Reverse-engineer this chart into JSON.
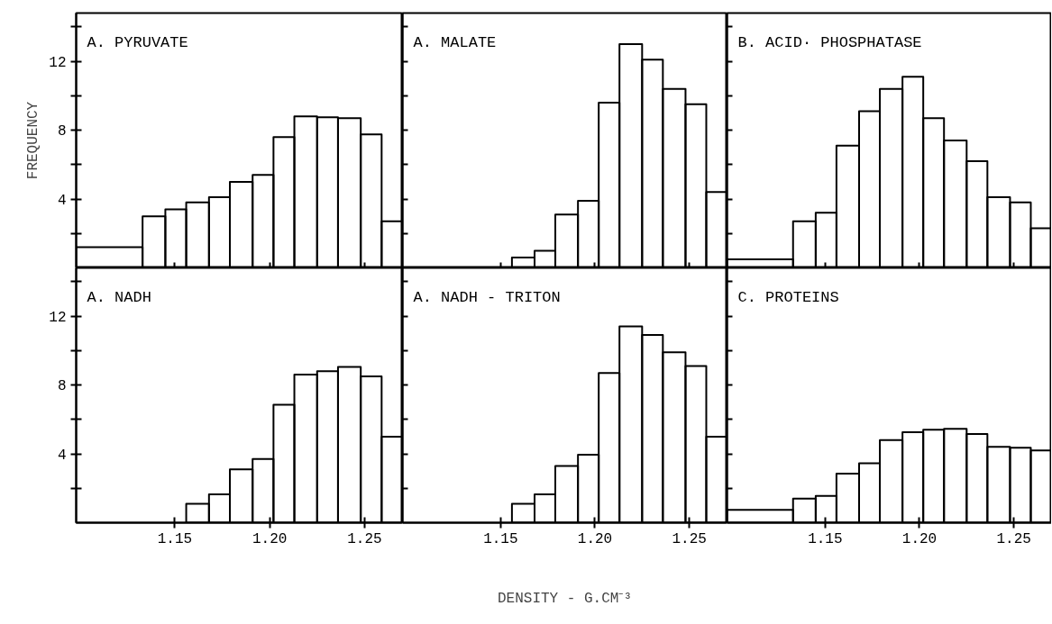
{
  "chart_data": [
    {
      "type": "histogram",
      "title": "A. PYRUVATE",
      "ylabel": "FREQUENCY",
      "color": "#000000",
      "tick_labels": "y",
      "bins": [
        1.098,
        1.133,
        1.145,
        1.156,
        1.168,
        1.179,
        1.191,
        1.202,
        1.213,
        1.225,
        1.236,
        1.248,
        1.259,
        1.27
      ],
      "values": [
        1.2,
        3.0,
        3.4,
        3.8,
        4.1,
        5.0,
        5.4,
        7.6,
        8.8,
        8.75,
        8.7,
        7.75,
        2.7
      ],
      "xlim": [
        1.098,
        1.27
      ],
      "ylim": [
        0,
        14.8
      ],
      "xticks": [
        {
          "value": 1.15,
          "label": null
        },
        {
          "value": 1.2,
          "label": null
        },
        {
          "value": 1.25,
          "label": null
        }
      ],
      "yticks": [
        {
          "value": 2,
          "label": null
        },
        4,
        {
          "value": 6,
          "label": null
        },
        8,
        {
          "value": 10,
          "label": null
        },
        12,
        {
          "value": 14,
          "label": null
        }
      ]
    },
    {
      "type": "histogram",
      "title": "A. MALATE",
      "color": "#000000",
      "tick_labels": false,
      "bins": [
        1.156,
        1.168,
        1.179,
        1.191,
        1.202,
        1.213,
        1.225,
        1.236,
        1.248,
        1.259,
        1.27
      ],
      "values": [
        0.6,
        1.0,
        3.1,
        3.9,
        9.6,
        13.0,
        12.1,
        10.4,
        9.5,
        4.4
      ],
      "xlim": [
        1.098,
        1.27
      ],
      "ylim": [
        0,
        14.8
      ],
      "xticks": [
        {
          "value": 1.15,
          "label": null
        },
        {
          "value": 1.2,
          "label": null
        },
        {
          "value": 1.25,
          "label": null
        }
      ],
      "yticks": [
        {
          "value": 2,
          "label": null
        },
        4,
        {
          "value": 6,
          "label": null
        },
        8,
        {
          "value": 10,
          "label": null
        },
        12,
        {
          "value": 14,
          "label": null
        }
      ]
    },
    {
      "type": "histogram",
      "title": "B. ACID· PHOSPHATASE",
      "color": "#000000",
      "tick_labels": false,
      "bins": [
        1.098,
        1.133,
        1.145,
        1.156,
        1.168,
        1.179,
        1.191,
        1.202,
        1.213,
        1.225,
        1.236,
        1.248,
        1.259,
        1.27
      ],
      "values": [
        0.5,
        2.7,
        3.2,
        7.1,
        9.1,
        10.4,
        11.1,
        8.7,
        7.4,
        6.2,
        4.1,
        3.8,
        2.3
      ],
      "xlim": [
        1.098,
        1.27
      ],
      "ylim": [
        0,
        14.8
      ],
      "xticks": [
        {
          "value": 1.15,
          "label": null
        },
        {
          "value": 1.2,
          "label": null
        },
        {
          "value": 1.25,
          "label": null
        }
      ],
      "yticks": [
        {
          "value": 2,
          "label": null
        },
        4,
        {
          "value": 6,
          "label": null
        },
        8,
        {
          "value": 10,
          "label": null
        },
        12,
        {
          "value": 14,
          "label": null
        }
      ]
    },
    {
      "type": "histogram",
      "title": "A. NADH",
      "color": "#000000",
      "bins": [
        1.156,
        1.168,
        1.179,
        1.191,
        1.202,
        1.213,
        1.225,
        1.236,
        1.248,
        1.259,
        1.27
      ],
      "values": [
        1.1,
        1.65,
        3.1,
        3.7,
        6.85,
        8.6,
        8.8,
        9.05,
        8.5,
        5.0
      ],
      "xlim": [
        1.098,
        1.27
      ],
      "ylim": [
        0,
        14.8
      ],
      "xticks": [
        {
          "value": 1.15,
          "label": "1.15"
        },
        {
          "value": 1.2,
          "label": "1.20"
        },
        {
          "value": 1.25,
          "label": "1.25"
        }
      ],
      "yticks": [
        {
          "value": 2,
          "label": null
        },
        4,
        {
          "value": 6,
          "label": null
        },
        8,
        {
          "value": 10,
          "label": null
        },
        12,
        {
          "value": 14,
          "label": null
        }
      ]
    },
    {
      "type": "histogram",
      "title": "A. NADH - TRITON",
      "xlabel": "DENSITY - G.CM⁻³",
      "color": "#000000",
      "tick_labels": "x",
      "bins": [
        1.156,
        1.168,
        1.179,
        1.191,
        1.202,
        1.213,
        1.225,
        1.236,
        1.248,
        1.259,
        1.27
      ],
      "values": [
        1.1,
        1.65,
        3.3,
        3.95,
        8.7,
        11.4,
        10.9,
        9.9,
        9.1,
        5.0
      ],
      "xlim": [
        1.098,
        1.27
      ],
      "ylim": [
        0,
        14.8
      ],
      "xticks": [
        {
          "value": 1.15,
          "label": "1.15"
        },
        {
          "value": 1.2,
          "label": "1.20"
        },
        {
          "value": 1.25,
          "label": "1.25"
        }
      ],
      "yticks": [
        {
          "value": 2,
          "label": null
        },
        4,
        {
          "value": 6,
          "label": null
        },
        8,
        {
          "value": 10,
          "label": null
        },
        12,
        {
          "value": 14,
          "label": null
        }
      ]
    },
    {
      "type": "histogram",
      "title": "C. PROTEINS",
      "color": "#000000",
      "tick_labels": "x",
      "bins": [
        1.098,
        1.133,
        1.145,
        1.156,
        1.168,
        1.179,
        1.191,
        1.202,
        1.213,
        1.225,
        1.236,
        1.248,
        1.259,
        1.27
      ],
      "values": [
        0.75,
        1.4,
        1.55,
        2.85,
        3.45,
        4.8,
        5.25,
        5.4,
        5.45,
        5.15,
        4.4,
        4.35,
        4.2
      ],
      "xlim": [
        1.098,
        1.27
      ],
      "ylim": [
        0,
        14.8
      ],
      "xticks": [
        {
          "value": 1.15,
          "label": "1.15"
        },
        {
          "value": 1.2,
          "label": "1.20"
        },
        {
          "value": 1.25,
          "label": "1.25"
        }
      ],
      "yticks": [
        {
          "value": 2,
          "label": null
        },
        4,
        {
          "value": 6,
          "label": null
        },
        8,
        {
          "value": 10,
          "label": null
        },
        12,
        {
          "value": 14,
          "label": null
        }
      ]
    }
  ]
}
